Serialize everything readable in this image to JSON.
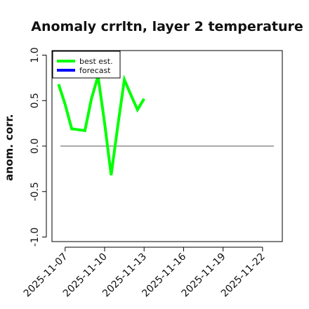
{
  "chart_data": {
    "type": "line",
    "title": "Anomaly crrltn, layer 2 temperature",
    "xlabel": "",
    "ylabel": "anom. corr.",
    "ylim": [
      -1.05,
      1.05
    ],
    "yticks": [
      -1.0,
      -0.5,
      0.0,
      0.5,
      1.0
    ],
    "ytick_labels": [
      "-1.0",
      "-0.5",
      "0.0",
      "0.5",
      "1.0"
    ],
    "xlim": [
      "2025-11-06 00:00",
      "2025-11-23 12:00"
    ],
    "xticks": [
      "2025-11-07",
      "2025-11-10",
      "2025-11-13",
      "2025-11-16",
      "2025-11-19",
      "2025-11-22"
    ],
    "xtick_labels": [
      "2025-11-07",
      "2025-11-10",
      "2025-11-13",
      "2025-11-16",
      "2025-11-19",
      "2025-11-22"
    ],
    "highlighted_xtick": "2025-11-13",
    "highlight_color": "#228b22",
    "reference_line_y": 0.0,
    "grid": false,
    "legend_position": "top-left",
    "series": [
      {
        "name": "best est.",
        "color": "#00ff00",
        "x": [
          "2025-11-06 12:00",
          "2025-11-07 00:00",
          "2025-11-07 12:00",
          "2025-11-08 00:00",
          "2025-11-08 12:00",
          "2025-11-09 00:00",
          "2025-11-09 12:00",
          "2025-11-10 00:00",
          "2025-11-10 12:00",
          "2025-11-11 00:00",
          "2025-11-11 12:00",
          "2025-11-12 00:00",
          "2025-11-12 12:00",
          "2025-11-13 00:00"
        ],
        "values": [
          0.68,
          0.46,
          0.19,
          0.18,
          0.17,
          0.52,
          0.77,
          0.25,
          -0.32,
          0.22,
          0.73,
          0.56,
          0.4,
          0.52
        ]
      },
      {
        "name": "forecast",
        "color": "#0000ff",
        "x": [],
        "values": []
      }
    ]
  }
}
